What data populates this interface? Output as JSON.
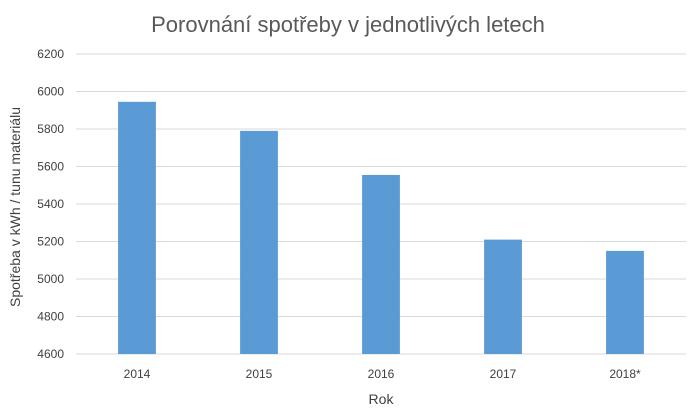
{
  "chart_data": {
    "type": "bar",
    "title": "Porovnání spotřeby v jednotlivých letech",
    "xlabel": "Rok",
    "ylabel": "Spotřeba v kWh / tunu materiálu",
    "categories": [
      "2014",
      "2015",
      "2016",
      "2017",
      "2018*"
    ],
    "values": [
      5945,
      5790,
      5555,
      5210,
      5150
    ],
    "ylim": [
      4600,
      6200
    ],
    "yticks": [
      4600,
      4800,
      5000,
      5200,
      5400,
      5600,
      5800,
      6000,
      6200
    ],
    "grid": true,
    "legend": "none",
    "colors": {
      "bar": "#5b9bd5",
      "grid": "#d9d9d9",
      "text": "#404040",
      "title": "#595959"
    }
  }
}
